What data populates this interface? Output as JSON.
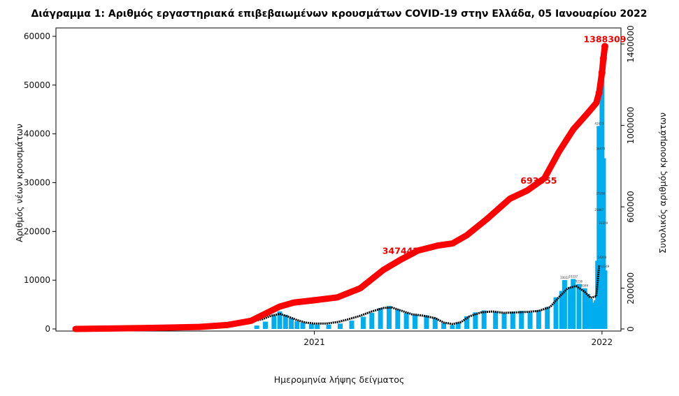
{
  "chart_data": {
    "type": "bar",
    "title": "Διάγραμμα 1: Αριθμός εργαστηριακά επιβεβαιωμένων κρουσμάτων COVID-19 στην Ελλάδα, 05 Ιανουαρίου 2022",
    "xlabel": "Ημερομηνία λήψης δείγματος",
    "ylabel_left": "Αριθμός νέων κρουσμάτων",
    "ylabel_right": "Συνολικός αριθμός κρουσμάτων",
    "x_tick_labels": [
      "2021",
      "2022"
    ],
    "ylim_left": [
      0,
      60000
    ],
    "yticks_left": [
      "0",
      "10000",
      "20000",
      "30000",
      "40000",
      "50000",
      "60000"
    ],
    "ylim_right": [
      0,
      1400000
    ],
    "yticks_right": [
      "0",
      "200000",
      "600000",
      "1000000",
      "1400000"
    ],
    "grid": false,
    "series": [
      {
        "kind": "bars",
        "color": "#00aeef",
        "points": [
          [
            2020.8,
            700
          ],
          [
            2020.83,
            1500
          ],
          [
            2020.86,
            2800
          ],
          [
            2020.88,
            3600
          ],
          [
            2020.9,
            2900
          ],
          [
            2020.92,
            2200
          ],
          [
            2020.94,
            1600
          ],
          [
            2020.96,
            1300
          ],
          [
            2020.99,
            1000
          ],
          [
            2021.01,
            900
          ],
          [
            2021.05,
            900
          ],
          [
            2021.09,
            1100
          ],
          [
            2021.13,
            1700
          ],
          [
            2021.17,
            2500
          ],
          [
            2021.2,
            3300
          ],
          [
            2021.23,
            4300
          ],
          [
            2021.26,
            4700
          ],
          [
            2021.29,
            4000
          ],
          [
            2021.32,
            3300
          ],
          [
            2021.35,
            2900
          ],
          [
            2021.39,
            2800
          ],
          [
            2021.42,
            2300
          ],
          [
            2021.45,
            1200
          ],
          [
            2021.48,
            800
          ],
          [
            2021.5,
            1300
          ],
          [
            2021.53,
            2600
          ],
          [
            2021.56,
            3400
          ],
          [
            2021.59,
            3800
          ],
          [
            2021.63,
            3500
          ],
          [
            2021.66,
            3200
          ],
          [
            2021.69,
            3500
          ],
          [
            2021.72,
            3700
          ],
          [
            2021.75,
            3400
          ],
          [
            2021.78,
            3800
          ],
          [
            2021.81,
            4500
          ],
          [
            2021.84,
            6500
          ],
          [
            2021.86,
            7800
          ],
          [
            2021.87,
            10022
          ],
          [
            2021.89,
            8600
          ],
          [
            2021.9,
            10237
          ],
          [
            2021.92,
            9236
          ],
          [
            2021.94,
            8346
          ],
          [
            2021.95,
            7200
          ],
          [
            2021.96,
            6200
          ],
          [
            2021.97,
            5400
          ],
          [
            2021.98,
            5900
          ],
          [
            2021.985,
            14000
          ],
          [
            2021.99,
            41613
          ],
          [
            2021.995,
            36479
          ],
          [
            2022.0,
            54000
          ],
          [
            2022.005,
            35000
          ],
          [
            2022.01,
            12000
          ]
        ]
      },
      {
        "kind": "moving-average",
        "color": "#000000",
        "points": [
          [
            2020.25,
            150
          ],
          [
            2020.5,
            300
          ],
          [
            2020.7,
            1000
          ],
          [
            2020.78,
            1500
          ],
          [
            2020.82,
            2000
          ],
          [
            2020.85,
            2700
          ],
          [
            2020.88,
            3100
          ],
          [
            2020.91,
            2500
          ],
          [
            2020.94,
            1800
          ],
          [
            2020.97,
            1300
          ],
          [
            2021.0,
            1100
          ],
          [
            2021.04,
            1100
          ],
          [
            2021.08,
            1400
          ],
          [
            2021.12,
            2000
          ],
          [
            2021.16,
            2700
          ],
          [
            2021.2,
            3600
          ],
          [
            2021.24,
            4300
          ],
          [
            2021.27,
            4400
          ],
          [
            2021.3,
            3800
          ],
          [
            2021.34,
            3000
          ],
          [
            2021.38,
            2700
          ],
          [
            2021.42,
            2200
          ],
          [
            2021.45,
            1300
          ],
          [
            2021.48,
            1000
          ],
          [
            2021.51,
            1400
          ],
          [
            2021.54,
            2600
          ],
          [
            2021.58,
            3400
          ],
          [
            2021.62,
            3600
          ],
          [
            2021.66,
            3300
          ],
          [
            2021.7,
            3400
          ],
          [
            2021.74,
            3500
          ],
          [
            2021.78,
            3700
          ],
          [
            2021.82,
            4500
          ],
          [
            2021.85,
            6500
          ],
          [
            2021.88,
            8300
          ],
          [
            2021.91,
            8800
          ],
          [
            2021.94,
            7600
          ],
          [
            2021.96,
            6400
          ],
          [
            2021.98,
            6700
          ],
          [
            2021.99,
            13000
          ]
        ]
      },
      {
        "kind": "cumulative-line",
        "axis": "right",
        "color": "#ff0000",
        "points": [
          [
            2020.17,
            0
          ],
          [
            2020.4,
            4000
          ],
          [
            2020.6,
            10000
          ],
          [
            2020.7,
            20000
          ],
          [
            2020.78,
            40000
          ],
          [
            2020.83,
            75000
          ],
          [
            2020.88,
            110000
          ],
          [
            2020.93,
            130000
          ],
          [
            2021.0,
            141000
          ],
          [
            2021.08,
            155000
          ],
          [
            2021.16,
            200000
          ],
          [
            2021.24,
            290000
          ],
          [
            2021.3,
            340000
          ],
          [
            2021.36,
            385000
          ],
          [
            2021.43,
            410000
          ],
          [
            2021.48,
            420000
          ],
          [
            2021.53,
            460000
          ],
          [
            2021.6,
            540000
          ],
          [
            2021.68,
            640000
          ],
          [
            2021.74,
            680000
          ],
          [
            2021.8,
            740000
          ],
          [
            2021.85,
            870000
          ],
          [
            2021.9,
            980000
          ],
          [
            2021.95,
            1060000
          ],
          [
            2021.98,
            1110000
          ],
          [
            2021.99,
            1160000
          ],
          [
            2022.0,
            1260000
          ],
          [
            2022.005,
            1330000
          ],
          [
            2022.01,
            1388309
          ]
        ]
      }
    ],
    "annotations": [
      {
        "label": "347442",
        "x": 2021.3,
        "y": 347442
      },
      {
        "label": "693355",
        "x": 2021.78,
        "y": 693355
      },
      {
        "label": "1388309",
        "x": 2022.01,
        "y": 1388309
      }
    ],
    "bar_value_labels": [
      {
        "label": "10022",
        "x": 2021.87,
        "y": 10022
      },
      {
        "label": "10237",
        "x": 2021.9,
        "y": 10237
      },
      {
        "label": "9236",
        "x": 2021.92,
        "y": 9236
      },
      {
        "label": "8346",
        "x": 2021.94,
        "y": 8346
      },
      {
        "label": "41613",
        "x": 2021.99,
        "y": 41613
      },
      {
        "label": "36479",
        "x": 2021.995,
        "y": 36479
      },
      {
        "label": "27286",
        "x": 2021.995,
        "y": 27286
      },
      {
        "label": "23887",
        "x": 2021.99,
        "y": 23887
      },
      {
        "label": "21199",
        "x": 2022.005,
        "y": 21199
      },
      {
        "label": "14203",
        "x": 2022.0,
        "y": 14203
      },
      {
        "label": "12349",
        "x": 2022.01,
        "y": 12349
      }
    ]
  }
}
